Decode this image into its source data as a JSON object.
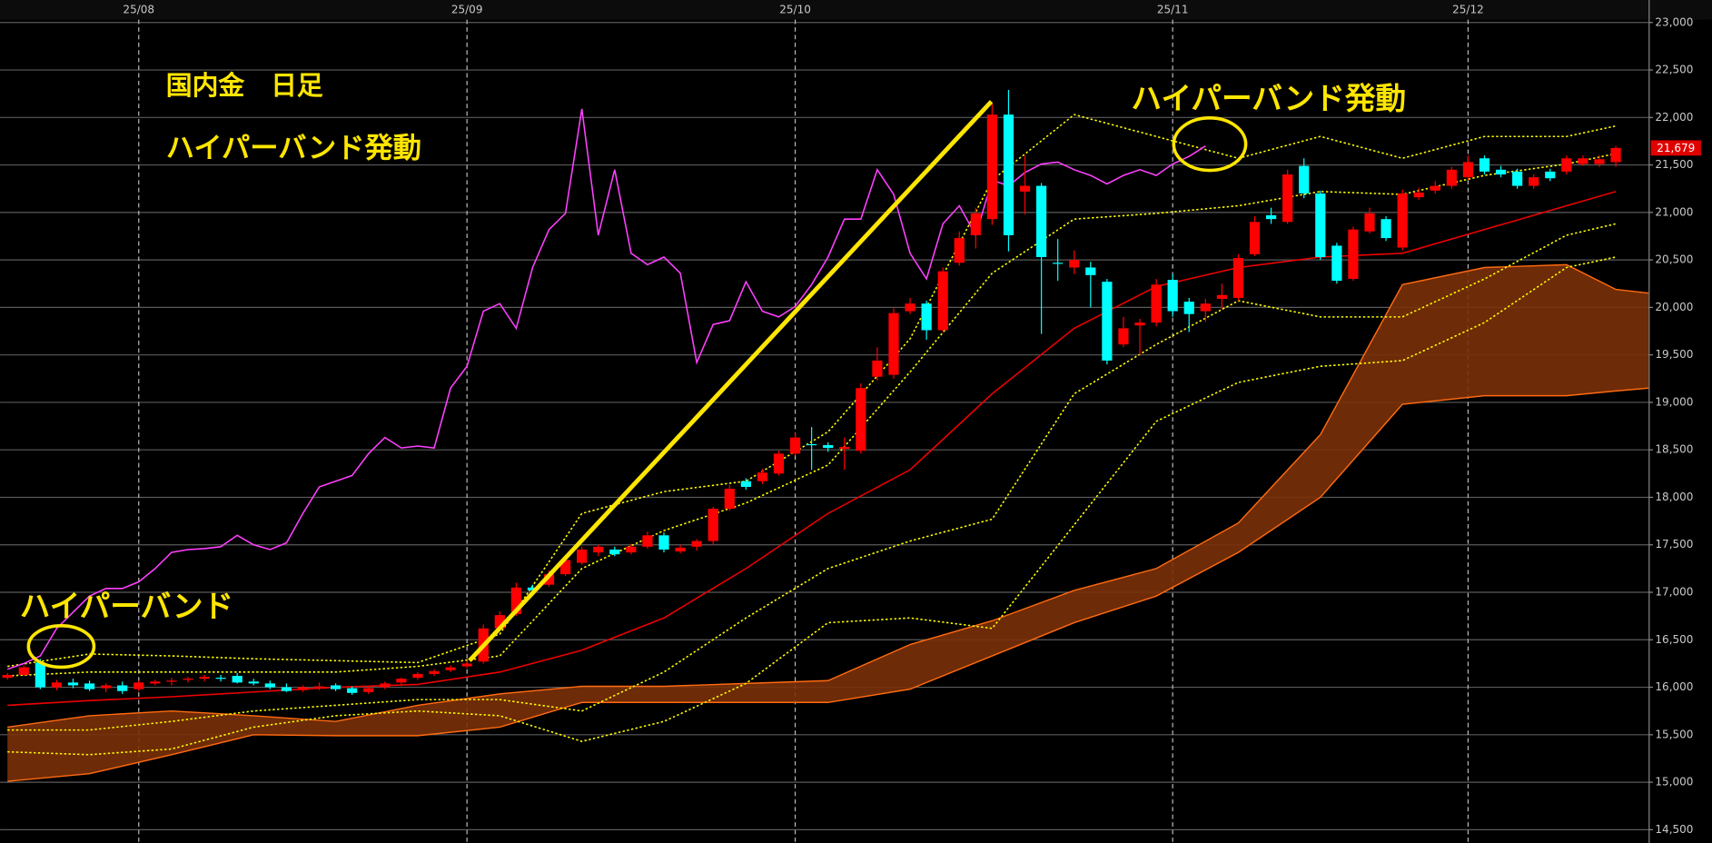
{
  "chart_data": {
    "type": "candlestick",
    "title": "国内金　日足",
    "annotations": [
      "ハイパーバンド発動",
      "ハイパーバンド",
      "ハイパーバンド発動"
    ],
    "categories": [
      null,
      null,
      null,
      null,
      null,
      null,
      null,
      null,
      "25/08",
      null,
      null,
      null,
      null,
      null,
      null,
      null,
      null,
      null,
      null,
      null,
      null,
      null,
      null,
      null,
      null,
      null,
      null,
      null,
      "25/09",
      null,
      null,
      null,
      null,
      null,
      null,
      null,
      null,
      null,
      null,
      null,
      null,
      null,
      null,
      null,
      null,
      null,
      null,
      null,
      "25/10",
      null,
      null,
      null,
      null,
      null,
      null,
      null,
      null,
      null,
      null,
      null,
      null,
      null,
      null,
      null,
      null,
      null,
      null,
      null,
      null,
      null,
      null,
      "25/11",
      null,
      null,
      null,
      null,
      null,
      null,
      null,
      null,
      null,
      null,
      null,
      null,
      null,
      null,
      null,
      null,
      null,
      "25/12",
      null,
      null,
      null,
      null,
      null,
      null,
      null,
      null,
      null
    ],
    "open": [
      16100,
      16130,
      16260,
      16000,
      16050,
      16040,
      15990,
      16020,
      15980,
      16040,
      16060,
      16080,
      16090,
      16100,
      16120,
      16060,
      16040,
      16000,
      15970,
      16000,
      16020,
      15990,
      15950,
      16000,
      16050,
      16100,
      16140,
      16180,
      16220,
      16270,
      16620,
      16770,
      17050,
      17080,
      17190,
      17310,
      17420,
      17450,
      17420,
      17480,
      17600,
      17430,
      17480,
      17540,
      17880,
      18170,
      18170,
      18250,
      18460,
      18560,
      18550,
      18510,
      18490,
      19270,
      19290,
      19960,
      20040,
      19760,
      20470,
      20760,
      20930,
      22030,
      21220,
      21280,
      20470,
      20420,
      20420,
      20270,
      19610,
      19810,
      19840,
      20290,
      20060,
      19960,
      20090,
      20100,
      20560,
      20970,
      20900,
      21490,
      21200,
      20650,
      20300,
      20800,
      20930,
      20630,
      21160,
      21230,
      21280,
      21370,
      21570,
      21450,
      21430,
      21280,
      21430,
      21430,
      21510,
      21510,
      21530
    ],
    "high": [
      16150,
      16230,
      16300,
      16080,
      16090,
      16070,
      16040,
      16060,
      16070,
      16080,
      16100,
      16110,
      16130,
      16130,
      16150,
      16090,
      16070,
      16040,
      16020,
      16050,
      16040,
      16010,
      16010,
      16060,
      16100,
      16160,
      16190,
      16230,
      16280,
      16660,
      16800,
      17100,
      17080,
      17230,
      17370,
      17480,
      17500,
      17480,
      17510,
      17640,
      17630,
      17500,
      17560,
      17900,
      18130,
      18200,
      18300,
      18490,
      18680,
      18740,
      18580,
      18630,
      19200,
      19580,
      19990,
      20100,
      20070,
      20420,
      20800,
      21050,
      22140,
      22290,
      21600,
      21310,
      20720,
      20600,
      20480,
      20300,
      19900,
      19880,
      20300,
      20350,
      20100,
      20090,
      20250,
      20560,
      20960,
      21050,
      21450,
      21570,
      21230,
      20680,
      20850,
      21050,
      20960,
      21240,
      21260,
      21330,
      21480,
      21600,
      21600,
      21490,
      21460,
      21400,
      21460,
      21600,
      21600,
      21600,
      21700
    ],
    "low": [
      16080,
      16120,
      15980,
      15970,
      15990,
      15960,
      15950,
      15930,
      15960,
      16020,
      16020,
      16050,
      16060,
      16060,
      16040,
      16020,
      15980,
      15950,
      15950,
      15970,
      15960,
      15920,
      15930,
      15980,
      16030,
      16080,
      16120,
      16160,
      16200,
      16250,
      16600,
      16750,
      16990,
      17060,
      17170,
      17290,
      17380,
      17380,
      17400,
      17460,
      17420,
      17410,
      17440,
      17500,
      17860,
      18080,
      18140,
      18230,
      18440,
      18290,
      18480,
      18290,
      18460,
      19230,
      19250,
      19930,
      19660,
      19740,
      20440,
      20620,
      20870,
      20590,
      20980,
      19720,
      20280,
      20350,
      20000,
      19400,
      19580,
      19500,
      19800,
      19900,
      19740,
      19850,
      19980,
      20070,
      20540,
      20880,
      20880,
      21150,
      20500,
      20250,
      20280,
      20780,
      20700,
      20600,
      21130,
      21200,
      21250,
      21340,
      21400,
      21370,
      21250,
      21250,
      21330,
      21400,
      21490,
      21480,
      21480
    ],
    "close": [
      16130,
      16210,
      16000,
      16050,
      16020,
      15980,
      16020,
      15960,
      16050,
      16060,
      16070,
      16090,
      16110,
      16090,
      16050,
      16040,
      16000,
      15960,
      16000,
      16010,
      15980,
      15940,
      15990,
      16040,
      16090,
      16140,
      16170,
      16210,
      16250,
      16620,
      16760,
      17050,
      17020,
      17190,
      17340,
      17450,
      17480,
      17400,
      17480,
      17600,
      17450,
      17470,
      17540,
      17880,
      18090,
      18110,
      18260,
      18460,
      18630,
      18550,
      18520,
      18530,
      19150,
      19440,
      19940,
      20040,
      19760,
      20380,
      20730,
      20990,
      22030,
      20760,
      21280,
      20530,
      20460,
      20500,
      20340,
      19440,
      19780,
      19840,
      20240,
      19960,
      19930,
      20040,
      20130,
      20520,
      20900,
      20930,
      21400,
      21200,
      20530,
      20280,
      20820,
      20990,
      20730,
      21200,
      21210,
      21280,
      21450,
      21530,
      21430,
      21400,
      21280,
      21370,
      21360,
      21570,
      21570,
      21560,
      21679
    ],
    "last_price_label": "21,679",
    "up_color": "#ff0000",
    "down_color": "#00ffff",
    "xlim": [
      -0.45,
      100
    ],
    "ylim": [
      14360,
      23030
    ],
    "yticks": [
      {
        "value": 14500,
        "label": "14,500"
      },
      {
        "value": 15000,
        "label": "15,000"
      },
      {
        "value": 15500,
        "label": "15,500"
      },
      {
        "value": 16000,
        "label": "16,000"
      },
      {
        "value": 16500,
        "label": "16,500"
      },
      {
        "value": 17000,
        "label": "17,000"
      },
      {
        "value": 17500,
        "label": "17,500"
      },
      {
        "value": 18000,
        "label": "18,000"
      },
      {
        "value": 18500,
        "label": "18,500"
      },
      {
        "value": 19000,
        "label": "19,000"
      },
      {
        "value": 19500,
        "label": "19,500"
      },
      {
        "value": 20000,
        "label": "20,000"
      },
      {
        "value": 20500,
        "label": "20,500"
      },
      {
        "value": 21000,
        "label": "21,000"
      },
      {
        "value": 21500,
        "label": "21,500"
      },
      {
        "value": 22000,
        "label": "22,000"
      },
      {
        "value": 22500,
        "label": "22,500"
      },
      {
        "value": 23000,
        "label": "23,000"
      }
    ],
    "grid": true,
    "cloud": {
      "fill": "#7a3008",
      "line_color": "#ff6a10",
      "x": [
        0,
        5,
        10,
        15,
        20,
        25,
        30,
        35,
        40,
        45,
        50,
        55,
        60,
        65,
        70,
        75,
        80,
        85,
        90,
        95,
        98,
        100
      ],
      "span_a": [
        15580,
        15700,
        15750,
        15700,
        15640,
        15810,
        15930,
        16010,
        16010,
        16040,
        16070,
        16450,
        16700,
        17020,
        17250,
        17730,
        18660,
        20240,
        20420,
        20450,
        20190,
        20150
      ],
      "span_b": [
        15010,
        15090,
        15290,
        15500,
        15490,
        15490,
        15580,
        15840,
        15840,
        15840,
        15840,
        15980,
        16330,
        16680,
        16960,
        17420,
        18000,
        18980,
        19070,
        19070,
        19120,
        19150
      ]
    },
    "overlays": [
      {
        "color": "#ee0000",
        "style": "solid",
        "x": [
          0,
          5,
          10,
          15,
          20,
          25,
          30,
          35,
          40,
          45,
          50,
          55,
          60,
          65,
          70,
          75,
          80,
          85,
          90,
          95,
          98
        ],
        "values": [
          15810,
          15860,
          15900,
          15950,
          16000,
          16030,
          16160,
          16390,
          16730,
          17250,
          17830,
          18290,
          19090,
          19780,
          20220,
          20420,
          20530,
          20570,
          20820,
          21070,
          21220
        ]
      },
      {
        "color": "#ffff00",
        "style": "dotted",
        "x": [
          0,
          5,
          10,
          15,
          20,
          25,
          30,
          35,
          40,
          45,
          50,
          55,
          60,
          65,
          70,
          75,
          80,
          85,
          90,
          95,
          98
        ],
        "values": [
          16220,
          16350,
          16330,
          16300,
          16280,
          16260,
          16560,
          17830,
          18060,
          18170,
          18690,
          19670,
          21340,
          22030,
          21800,
          21570,
          21800,
          21570,
          21800,
          21800,
          21910
        ]
      },
      {
        "color": "#ffff00",
        "style": "dotted",
        "x": [
          0,
          5,
          10,
          15,
          20,
          25,
          30,
          35,
          40,
          45,
          50,
          55,
          60,
          65,
          70,
          75,
          80,
          85,
          90,
          95,
          98
        ],
        "values": [
          16120,
          16160,
          16160,
          16160,
          16160,
          16220,
          16330,
          17250,
          17650,
          17940,
          18340,
          19320,
          20360,
          20930,
          20990,
          21070,
          21220,
          21190,
          21390,
          21510,
          21620
        ]
      },
      {
        "color": "#ffff00",
        "style": "dotted",
        "x": [
          0,
          5,
          10,
          15,
          20,
          25,
          30,
          35,
          40,
          45,
          50,
          55,
          60,
          65,
          70,
          75,
          80,
          85,
          90,
          95,
          98
        ],
        "values": [
          15550,
          15550,
          15640,
          15750,
          15810,
          15870,
          15870,
          15750,
          16160,
          16730,
          17250,
          17540,
          17770,
          19090,
          19610,
          20070,
          19900,
          19900,
          20300,
          20760,
          20880
        ]
      },
      {
        "color": "#ffff00",
        "style": "dotted",
        "x": [
          0,
          5,
          10,
          15,
          20,
          25,
          30,
          35,
          40,
          45,
          50,
          55,
          60,
          65,
          70,
          75,
          80,
          85,
          90,
          95,
          98
        ],
        "values": [
          15320,
          15290,
          15350,
          15580,
          15700,
          15750,
          15700,
          15430,
          15640,
          16040,
          16680,
          16730,
          16620,
          17710,
          18800,
          19210,
          19380,
          19440,
          19840,
          20420,
          20530
        ]
      },
      {
        "color": "#ff40ff",
        "style": "solid",
        "x": [
          0,
          1,
          2,
          3,
          4,
          5,
          6,
          7,
          8,
          9,
          10,
          11,
          12,
          13,
          14,
          15,
          16,
          17,
          18,
          19,
          20,
          21,
          22,
          23,
          24,
          25,
          26,
          27,
          28,
          29,
          30,
          31,
          32,
          33,
          34,
          35,
          36,
          37,
          38,
          39,
          40,
          41,
          42,
          43,
          44,
          45,
          46,
          47,
          48,
          49,
          50,
          51,
          52,
          53,
          54,
          55,
          56,
          57,
          58,
          59,
          60,
          61,
          62,
          63,
          64,
          65,
          66,
          67,
          68,
          69,
          70,
          71,
          72,
          73
        ],
        "values": [
          16190,
          16250,
          16330,
          16620,
          16790,
          16960,
          17040,
          17040,
          17110,
          17250,
          17420,
          17450,
          17460,
          17480,
          17600,
          17500,
          17450,
          17520,
          17830,
          18110,
          18170,
          18230,
          18460,
          18630,
          18520,
          18540,
          18520,
          19150,
          19380,
          19960,
          20040,
          19780,
          20420,
          20820,
          20990,
          22090,
          20760,
          21450,
          20570,
          20450,
          20530,
          20360,
          19420,
          19820,
          19860,
          20270,
          19960,
          19900,
          20010,
          20240,
          20530,
          20930,
          20930,
          21450,
          21190,
          20570,
          20300,
          20880,
          21070,
          20760,
          21340,
          21280,
          21420,
          21510,
          21530,
          21450,
          21390,
          21300,
          21390,
          21450,
          21390,
          21510,
          21590,
          21700
        ]
      }
    ]
  }
}
